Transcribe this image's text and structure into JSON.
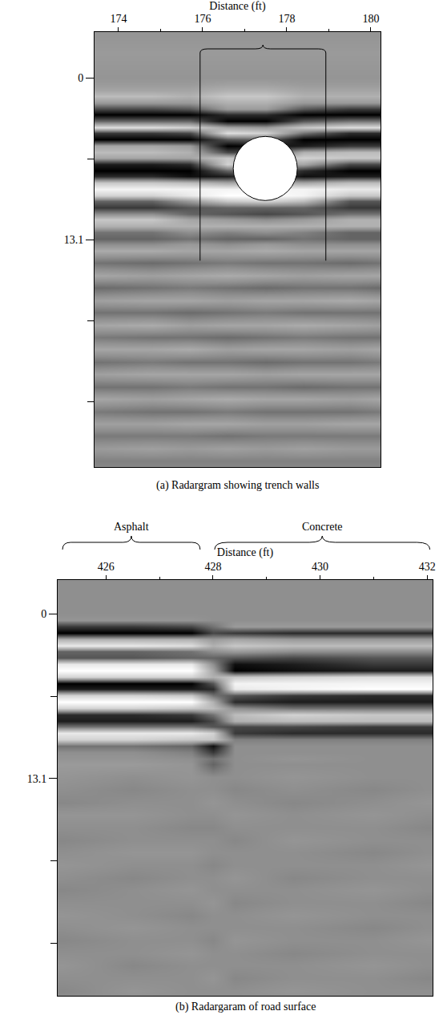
{
  "chart_data": [
    {
      "type": "heatmap",
      "caption": "(a) Radargram showing trench walls",
      "xlabel": "Distance (ft)",
      "xlim": [
        173.43,
        180.23
      ],
      "ylim": [
        31.5,
        -3.7
      ],
      "xticks": [
        174,
        176,
        178,
        180
      ],
      "yticks": [
        0,
        13.1
      ],
      "zlim": [
        -1,
        1
      ],
      "trench_walls": {
        "x": [
          175.94,
          178.93
        ],
        "depth": 14.8
      },
      "target": {
        "x": 177.49,
        "y": 7.34
      },
      "x": [
        173.5,
        174.8,
        175.7,
        176.6,
        177.5,
        178.4,
        179.5,
        180.2
      ],
      "y": [
        -3.5,
        -2,
        0,
        0.5,
        1,
        1.5,
        2,
        2.5,
        3,
        3.5,
        4,
        4.5,
        5,
        5.5,
        6,
        6.5,
        7,
        7.5,
        8,
        8.5,
        9,
        9.5,
        10,
        10.5,
        11,
        11.5,
        12,
        12.5,
        13,
        13.5,
        14,
        15,
        16,
        17,
        18,
        19,
        20,
        21,
        22,
        23,
        24,
        25,
        26,
        27,
        28,
        29,
        30,
        31,
        32
      ],
      "z": [
        [
          0.05,
          0.05,
          0.05,
          0.05,
          0.05,
          0.05,
          0.05,
          0.05
        ],
        [
          0.1,
          0.1,
          0.1,
          0.1,
          0.1,
          0.1,
          0.1,
          0.1
        ],
        [
          0.05,
          0.05,
          0.05,
          0.05,
          0.05,
          0.05,
          0.05,
          0.05
        ],
        [
          0.1,
          0.1,
          0.1,
          0.15,
          0.15,
          0.1,
          0.1,
          0.1
        ],
        [
          0.2,
          0.2,
          0.2,
          0.3,
          0.3,
          0.2,
          0.2,
          0.2
        ],
        [
          0.4,
          0.4,
          0.3,
          0.5,
          0.5,
          0.3,
          0.3,
          0.3
        ],
        [
          0.1,
          0.1,
          0.1,
          0.3,
          0.3,
          0.1,
          0.1,
          0.1
        ],
        [
          -0.5,
          -0.5,
          -0.4,
          0.1,
          0.1,
          -0.4,
          -0.6,
          -0.6
        ],
        [
          -1,
          -1,
          -1,
          -0.7,
          -0.7,
          -1,
          -1,
          -1
        ],
        [
          -0.3,
          -0.3,
          -0.3,
          -1,
          -1,
          -0.4,
          -0.2,
          -0.2
        ],
        [
          0.7,
          0.7,
          0.6,
          0.2,
          0.1,
          0.5,
          0.7,
          0.7
        ],
        [
          -0.6,
          -0.6,
          -0.5,
          0.7,
          0.6,
          -0.2,
          -0.7,
          -0.7
        ],
        [
          -1,
          -1,
          -1,
          -0.4,
          -0.3,
          -1,
          -1,
          -1
        ],
        [
          0.2,
          0.2,
          0.1,
          -1,
          -0.9,
          -0.8,
          -0.6,
          -0.6
        ],
        [
          0.4,
          0.4,
          0.3,
          -0.5,
          -0.6,
          0.3,
          0.4,
          0.4
        ],
        [
          0.2,
          0.2,
          0.2,
          0.5,
          0.3,
          0.6,
          0.5,
          0.5
        ],
        [
          -0.8,
          -0.8,
          -0.7,
          0.6,
          0.2,
          0.2,
          -0.5,
          -0.5
        ],
        [
          -1,
          -1,
          -1,
          -0.3,
          -0.2,
          -0.7,
          -1,
          -1
        ],
        [
          -0.7,
          -0.7,
          -0.9,
          -0.8,
          -0.5,
          -0.9,
          -0.8,
          -0.8
        ],
        [
          0.5,
          0.5,
          0.4,
          0.2,
          0.3,
          0.2,
          0.4,
          0.4
        ],
        [
          0.9,
          0.9,
          0.9,
          0.9,
          0.9,
          0.9,
          0.8,
          0.8
        ],
        [
          0.6,
          0.6,
          0.8,
          1,
          1,
          0.9,
          0.5,
          0.5
        ],
        [
          -0.3,
          -0.3,
          0.1,
          0.5,
          0.6,
          0.4,
          -0.4,
          -0.4
        ],
        [
          -0.6,
          -0.6,
          -0.4,
          -0.3,
          -0.3,
          -0.3,
          -0.6,
          -0.6
        ],
        [
          0,
          0,
          -0.3,
          -0.4,
          -0.5,
          -0.4,
          -0.2,
          -0.2
        ],
        [
          0.5,
          0.5,
          0.2,
          0.1,
          0,
          0.1,
          0.3,
          0.3
        ],
        [
          0.3,
          0.3,
          0.3,
          0.3,
          0.3,
          0.3,
          0.3,
          0.3
        ],
        [
          -0.2,
          -0.2,
          0,
          -0.1,
          0,
          -0.1,
          -0.3,
          -0.3
        ],
        [
          -0.3,
          -0.3,
          -0.2,
          -0.3,
          -0.3,
          -0.2,
          -0.3,
          -0.3
        ],
        [
          0,
          0,
          0.1,
          0,
          0.1,
          0,
          0,
          0
        ],
        [
          0.25,
          0.25,
          0.2,
          0.2,
          0.25,
          0.2,
          0.2,
          0.2
        ],
        [
          -0.2,
          -0.25,
          -0.2,
          -0.15,
          -0.2,
          -0.2,
          -0.25,
          -0.2
        ],
        [
          0.2,
          0.15,
          0.2,
          0.25,
          0.2,
          0.15,
          0.2,
          0.2
        ],
        [
          -0.25,
          -0.2,
          -0.15,
          -0.2,
          -0.25,
          -0.2,
          -0.2,
          -0.25
        ],
        [
          0.15,
          0.2,
          0.2,
          0.15,
          0.2,
          0.2,
          0.25,
          0.2
        ],
        [
          -0.2,
          -0.2,
          -0.25,
          -0.2,
          -0.15,
          -0.2,
          -0.2,
          -0.2
        ],
        [
          0.2,
          0.25,
          0.15,
          0.2,
          0.2,
          0.25,
          0.2,
          0.15
        ],
        [
          -0.15,
          -0.2,
          -0.2,
          -0.25,
          -0.2,
          -0.15,
          -0.2,
          -0.2
        ],
        [
          0.2,
          0.2,
          0.25,
          0.15,
          0.2,
          0.2,
          0.15,
          0.2
        ],
        [
          -0.2,
          -0.15,
          -0.2,
          -0.2,
          -0.25,
          -0.2,
          -0.2,
          -0.15
        ],
        [
          0.15,
          0.2,
          0.2,
          0.2,
          0.15,
          0.2,
          0.2,
          0.2
        ],
        [
          -0.2,
          -0.2,
          -0.15,
          -0.2,
          -0.2,
          -0.25,
          -0.2,
          -0.2
        ],
        [
          0.2,
          0.15,
          0.2,
          0.25,
          0.2,
          0.2,
          0.15,
          0.2
        ],
        [
          -0.15,
          -0.2,
          -0.2,
          -0.15,
          -0.2,
          -0.2,
          -0.2,
          -0.15
        ],
        [
          0.15,
          0.15,
          0.2,
          0.2,
          0.15,
          0.15,
          0.2,
          0.2
        ],
        [
          -0.15,
          -0.15,
          -0.15,
          -0.2,
          -0.15,
          -0.15,
          -0.15,
          -0.15
        ],
        [
          0.1,
          0.15,
          0.1,
          0.15,
          0.1,
          0.15,
          0.1,
          0.1
        ],
        [
          -0.1,
          -0.1,
          -0.1,
          -0.1,
          -0.1,
          -0.1,
          -0.1,
          -0.1
        ],
        [
          0,
          0,
          0,
          0,
          0,
          0,
          0,
          0
        ]
      ]
    },
    {
      "type": "heatmap",
      "caption": "(b) Radargaram of road surface",
      "xlabel": "Distance (ft)",
      "xlim": [
        425.1,
        432.1
      ],
      "ylim": [
        30.4,
        -2.7
      ],
      "xticks": [
        426,
        428,
        430,
        432
      ],
      "yticks": [
        0,
        13.1
      ],
      "zlim": [
        -1,
        1
      ],
      "spans": [
        {
          "label": "Asphalt",
          "x": [
            425.19,
            427.76
          ]
        },
        {
          "label": "Concrete",
          "x": [
            428.03,
            432.05
          ]
        }
      ],
      "x": [
        425.2,
        426.5,
        427.6,
        428.0,
        428.4,
        429.5,
        431.0,
        432.0
      ],
      "y": [
        -2.5,
        -1.5,
        0,
        0.5,
        1,
        1.5,
        2,
        2.5,
        3,
        3.5,
        4,
        4.5,
        5,
        5.5,
        6,
        6.5,
        7,
        7.5,
        8,
        8.5,
        9,
        9.5,
        10,
        10.5,
        11,
        11.5,
        12,
        13,
        14,
        15,
        16,
        17,
        18,
        19,
        20,
        21,
        22,
        23,
        24,
        25,
        26,
        27,
        28,
        29,
        30,
        31
      ],
      "z": [
        [
          0,
          0,
          0,
          0,
          0,
          0,
          0,
          0
        ],
        [
          0,
          0,
          0,
          0,
          0,
          0,
          0,
          0
        ],
        [
          0,
          0,
          0,
          0,
          0,
          0,
          0,
          0
        ],
        [
          0.05,
          0.05,
          0.05,
          0,
          0,
          0,
          0,
          0
        ],
        [
          -0.6,
          -0.6,
          -0.5,
          -0.2,
          0.1,
          0.1,
          0.1,
          0.1
        ],
        [
          -1,
          -1,
          -1,
          -0.5,
          -0.6,
          -0.7,
          -0.7,
          -0.7
        ],
        [
          0.3,
          0.3,
          0.3,
          0.1,
          0.2,
          0.1,
          0.1,
          0.1
        ],
        [
          0.8,
          0.8,
          0.7,
          0.3,
          0.5,
          0.4,
          0.4,
          0.4
        ],
        [
          -0.3,
          -0.3,
          -0.2,
          0,
          0.1,
          0,
          0,
          0
        ],
        [
          -0.4,
          -0.4,
          -0.3,
          -0.3,
          -0.4,
          -0.5,
          -0.4,
          -0.4
        ],
        [
          0.8,
          0.8,
          0.8,
          0,
          -0.9,
          -0.8,
          -0.6,
          -0.6
        ],
        [
          1,
          1,
          1,
          0.2,
          -1,
          -0.9,
          -0.8,
          -0.8
        ],
        [
          0.6,
          0.6,
          0.6,
          0.3,
          0.5,
          0.6,
          0.7,
          0.7
        ],
        [
          -1,
          -1,
          -1,
          -0.4,
          0.9,
          0.9,
          0.9,
          0.9
        ],
        [
          -0.8,
          -0.8,
          -0.8,
          -0.7,
          0.8,
          0.9,
          1,
          1
        ],
        [
          0.6,
          0.6,
          0.5,
          -0.2,
          -0.4,
          -0.6,
          -0.7,
          -0.7
        ],
        [
          1,
          1,
          1,
          0.3,
          -0.7,
          -0.8,
          -0.8,
          -0.8
        ],
        [
          0.6,
          0.6,
          0.5,
          0.4,
          0,
          -0.2,
          -0.2,
          -0.2
        ],
        [
          -0.7,
          -0.7,
          -0.6,
          -0.2,
          0.4,
          0.6,
          0.5,
          0.5
        ],
        [
          -0.8,
          -0.8,
          -0.8,
          -0.5,
          0.3,
          0.4,
          0.4,
          0.4
        ],
        [
          -0.2,
          -0.2,
          -0.2,
          -0.4,
          -0.5,
          -0.5,
          -0.6,
          -0.6
        ],
        [
          0.8,
          0.8,
          0.8,
          0.6,
          -0.6,
          -0.7,
          -0.7,
          -0.7
        ],
        [
          0.6,
          0.6,
          0.5,
          0.5,
          -0.1,
          -0.1,
          -0.1,
          -0.1
        ],
        [
          -0.2,
          -0.2,
          -0.3,
          -0.9,
          0,
          0,
          0,
          0
        ],
        [
          0,
          0,
          -0.1,
          -0.6,
          0,
          0,
          0,
          0
        ],
        [
          0.05,
          0.05,
          0,
          -0.2,
          0,
          0.05,
          0,
          0
        ],
        [
          0.1,
          0.1,
          0.05,
          -0.3,
          0,
          0,
          0,
          0
        ],
        [
          0.05,
          0,
          0.05,
          0,
          0,
          0.05,
          0,
          0
        ],
        [
          0,
          -0.05,
          0,
          0,
          -0.05,
          0,
          -0.05,
          0
        ],
        [
          -0.05,
          0,
          0,
          0.05,
          0,
          -0.05,
          0,
          0.05
        ],
        [
          0.05,
          0.05,
          0,
          0,
          0.05,
          0,
          0.05,
          0
        ],
        [
          0,
          0,
          -0.05,
          -0.05,
          0,
          0,
          0,
          -0.05
        ],
        [
          -0.05,
          0,
          0,
          0,
          -0.05,
          0.05,
          0,
          0
        ],
        [
          0,
          0.05,
          0.05,
          0,
          0,
          0,
          -0.05,
          0
        ],
        [
          0.05,
          0,
          0,
          -0.05,
          0,
          0,
          0,
          0.05
        ],
        [
          0,
          -0.05,
          0,
          0,
          0.05,
          -0.05,
          0,
          0
        ],
        [
          -0.05,
          0,
          0.05,
          0,
          0,
          0,
          0.05,
          0
        ],
        [
          0,
          0,
          0,
          0.05,
          -0.05,
          0,
          0,
          -0.05
        ],
        [
          0.05,
          0,
          -0.05,
          0,
          0,
          0.05,
          0,
          0
        ],
        [
          0,
          0.05,
          0,
          0,
          0,
          0,
          -0.05,
          0
        ],
        [
          -0.05,
          0,
          0,
          -0.05,
          0.05,
          0,
          0,
          0.05
        ],
        [
          0,
          0,
          0.05,
          0,
          0,
          -0.05,
          0,
          0
        ],
        [
          0.05,
          -0.05,
          0,
          0,
          0,
          0,
          0.05,
          0
        ],
        [
          0,
          0,
          0,
          0.05,
          -0.05,
          0,
          0,
          -0.05
        ],
        [
          -0.05,
          0.05,
          0,
          0,
          0,
          0.05,
          0,
          0
        ],
        [
          0,
          0,
          0,
          0,
          0,
          0,
          0,
          0
        ]
      ]
    }
  ]
}
